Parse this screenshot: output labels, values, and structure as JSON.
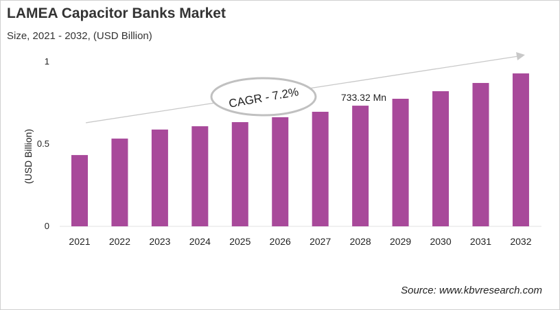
{
  "chart_data": {
    "type": "bar",
    "title": "LAMEA Capacitor Banks Market",
    "subtitle": "Size, 2021 - 2032, (USD Billion)",
    "xlabel": "",
    "ylabel": "(USD Billion)",
    "categories": [
      "2021",
      "2022",
      "2023",
      "2024",
      "2025",
      "2026",
      "2027",
      "2028",
      "2029",
      "2030",
      "2031",
      "2032"
    ],
    "values": [
      0.433,
      0.533,
      0.588,
      0.608,
      0.633,
      0.663,
      0.696,
      0.733,
      0.775,
      0.821,
      0.871,
      0.929
    ],
    "ylim": [
      0,
      1
    ],
    "yticks": [
      "0",
      "0.5",
      "1"
    ],
    "grid": false,
    "bar_color": "#a8499a",
    "annotations": {
      "cagr": "CAGR - 7.2%",
      "data_label": "733.32 Mn",
      "data_label_category": "2028"
    }
  },
  "source": "Source: www.kbvresearch.com"
}
